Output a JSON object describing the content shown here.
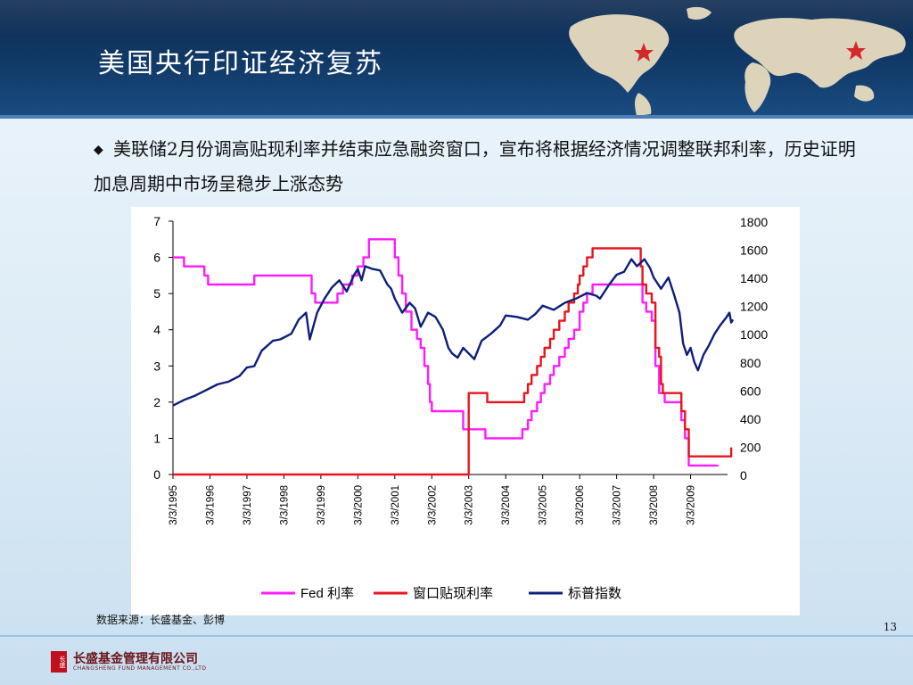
{
  "slide": {
    "title": "美国央行印证经济复苏",
    "bullet": "美联储2月份调高贴现利率并结束应急融资窗口，宣布将根据经济情况调整联邦利率，历史证明加息周期中市场呈稳步上涨态势",
    "source": "数据来源：长盛基金、彭博",
    "page_number": "13"
  },
  "footer": {
    "logo_text": "长盛",
    "company_name": "长盛基金管理有限公司",
    "company_name_en": "CHANGSHENG FUND MANAGEMENT CO.,LTD"
  },
  "colors": {
    "fed_rate": "#ff1aff",
    "discount_rate": "#e8141c",
    "sp500": "#0d1f7a",
    "header_bg": "#123c6b",
    "star": "#d22a2a"
  },
  "chart_data": {
    "type": "line",
    "title": "",
    "left_axis": {
      "ylim": [
        0,
        7
      ],
      "ticks": [
        "0",
        "1",
        "2",
        "3",
        "4",
        "5",
        "6",
        "7"
      ]
    },
    "right_axis": {
      "ylim": [
        0,
        1800
      ],
      "ticks": [
        "0",
        "200",
        "400",
        "600",
        "800",
        "1000",
        "1200",
        "1400",
        "1600",
        "1800"
      ]
    },
    "x_ticks": [
      "3/3/1995",
      "3/3/1996",
      "3/3/1997",
      "3/3/1998",
      "3/3/1999",
      "3/3/2000",
      "3/3/2001",
      "3/3/2002",
      "3/3/2003",
      "3/3/2004",
      "3/3/2005",
      "3/3/2006",
      "3/3/2007",
      "3/3/2008",
      "3/3/2009"
    ],
    "x_range": [
      1995.0,
      2010.0
    ],
    "legend_position": "bottom",
    "series": [
      {
        "name": "Fed 利率",
        "axis": "left",
        "color_key": "fed_rate",
        "step": true,
        "points": [
          [
            1995.0,
            6.0
          ],
          [
            1995.3,
            5.75
          ],
          [
            1995.85,
            5.5
          ],
          [
            1995.95,
            5.25
          ],
          [
            1996.1,
            5.25
          ],
          [
            1997.2,
            5.5
          ],
          [
            1998.5,
            5.5
          ],
          [
            1998.75,
            5.0
          ],
          [
            1998.85,
            4.75
          ],
          [
            1999.45,
            5.0
          ],
          [
            1999.6,
            5.25
          ],
          [
            1999.85,
            5.5
          ],
          [
            2000.0,
            5.75
          ],
          [
            2000.15,
            6.0
          ],
          [
            2000.3,
            6.5
          ],
          [
            2000.85,
            6.5
          ],
          [
            2001.0,
            6.0
          ],
          [
            2001.1,
            5.5
          ],
          [
            2001.2,
            5.0
          ],
          [
            2001.3,
            4.5
          ],
          [
            2001.45,
            4.0
          ],
          [
            2001.6,
            3.75
          ],
          [
            2001.7,
            3.5
          ],
          [
            2001.8,
            3.0
          ],
          [
            2001.9,
            2.5
          ],
          [
            2001.95,
            2.0
          ],
          [
            2002.0,
            1.75
          ],
          [
            2002.85,
            1.25
          ],
          [
            2003.45,
            1.0
          ],
          [
            2004.45,
            1.25
          ],
          [
            2004.6,
            1.5
          ],
          [
            2004.7,
            1.75
          ],
          [
            2004.85,
            2.0
          ],
          [
            2004.95,
            2.25
          ],
          [
            2005.05,
            2.5
          ],
          [
            2005.2,
            2.75
          ],
          [
            2005.3,
            3.0
          ],
          [
            2005.45,
            3.25
          ],
          [
            2005.6,
            3.5
          ],
          [
            2005.7,
            3.75
          ],
          [
            2005.85,
            4.0
          ],
          [
            2006.0,
            4.5
          ],
          [
            2006.1,
            4.75
          ],
          [
            2006.2,
            5.0
          ],
          [
            2006.35,
            5.25
          ],
          [
            2007.65,
            5.25
          ],
          [
            2007.7,
            4.75
          ],
          [
            2007.8,
            4.5
          ],
          [
            2007.95,
            4.25
          ],
          [
            2008.05,
            3.0
          ],
          [
            2008.15,
            2.25
          ],
          [
            2008.3,
            2.0
          ],
          [
            2008.75,
            1.5
          ],
          [
            2008.85,
            1.0
          ],
          [
            2008.95,
            0.25
          ],
          [
            2009.75,
            0.25
          ]
        ]
      },
      {
        "name": "窗口贴现利率",
        "axis": "left",
        "color_key": "discount_rate",
        "step": true,
        "points": [
          [
            1995.0,
            0.0
          ],
          [
            2002.95,
            0.0
          ],
          [
            2003.0,
            2.25
          ],
          [
            2003.5,
            2.0
          ],
          [
            2004.5,
            2.25
          ],
          [
            2004.6,
            2.5
          ],
          [
            2004.7,
            2.75
          ],
          [
            2004.85,
            3.0
          ],
          [
            2004.95,
            3.25
          ],
          [
            2005.05,
            3.5
          ],
          [
            2005.2,
            3.75
          ],
          [
            2005.3,
            4.0
          ],
          [
            2005.45,
            4.25
          ],
          [
            2005.6,
            4.5
          ],
          [
            2005.7,
            4.75
          ],
          [
            2005.85,
            5.0
          ],
          [
            2005.95,
            5.25
          ],
          [
            2006.0,
            5.5
          ],
          [
            2006.1,
            5.75
          ],
          [
            2006.2,
            6.0
          ],
          [
            2006.35,
            6.25
          ],
          [
            2007.6,
            6.25
          ],
          [
            2007.65,
            5.75
          ],
          [
            2007.7,
            5.25
          ],
          [
            2007.8,
            5.0
          ],
          [
            2007.95,
            4.75
          ],
          [
            2008.05,
            3.5
          ],
          [
            2008.15,
            3.25
          ],
          [
            2008.2,
            2.5
          ],
          [
            2008.25,
            2.25
          ],
          [
            2008.75,
            1.75
          ],
          [
            2008.85,
            1.25
          ],
          [
            2008.95,
            0.5
          ],
          [
            2010.05,
            0.5
          ],
          [
            2010.1,
            0.75
          ]
        ]
      },
      {
        "name": "标普指数",
        "axis": "right",
        "color_key": "sp500",
        "step": false,
        "points": [
          [
            1995.0,
            490
          ],
          [
            1995.3,
            530
          ],
          [
            1995.6,
            560
          ],
          [
            1995.9,
            600
          ],
          [
            1996.2,
            640
          ],
          [
            1996.5,
            660
          ],
          [
            1996.8,
            700
          ],
          [
            1997.0,
            760
          ],
          [
            1997.2,
            770
          ],
          [
            1997.4,
            880
          ],
          [
            1997.7,
            950
          ],
          [
            1997.9,
            960
          ],
          [
            1998.2,
            1000
          ],
          [
            1998.4,
            1100
          ],
          [
            1998.6,
            1150
          ],
          [
            1998.7,
            960
          ],
          [
            1998.9,
            1150
          ],
          [
            1999.1,
            1250
          ],
          [
            1999.3,
            1330
          ],
          [
            1999.5,
            1380
          ],
          [
            1999.7,
            1300
          ],
          [
            1999.9,
            1420
          ],
          [
            2000.0,
            1460
          ],
          [
            2000.1,
            1380
          ],
          [
            2000.2,
            1480
          ],
          [
            2000.4,
            1460
          ],
          [
            2000.6,
            1450
          ],
          [
            2000.8,
            1350
          ],
          [
            2000.9,
            1320
          ],
          [
            2001.0,
            1250
          ],
          [
            2001.2,
            1150
          ],
          [
            2001.4,
            1220
          ],
          [
            2001.55,
            1180
          ],
          [
            2001.7,
            1050
          ],
          [
            2001.8,
            1100
          ],
          [
            2001.9,
            1150
          ],
          [
            2002.1,
            1120
          ],
          [
            2002.3,
            1030
          ],
          [
            2002.45,
            900
          ],
          [
            2002.55,
            860
          ],
          [
            2002.7,
            830
          ],
          [
            2002.85,
            900
          ],
          [
            2003.0,
            860
          ],
          [
            2003.15,
            820
          ],
          [
            2003.35,
            950
          ],
          [
            2003.6,
            1000
          ],
          [
            2003.85,
            1060
          ],
          [
            2004.0,
            1130
          ],
          [
            2004.3,
            1120
          ],
          [
            2004.6,
            1100
          ],
          [
            2004.8,
            1140
          ],
          [
            2005.0,
            1200
          ],
          [
            2005.3,
            1170
          ],
          [
            2005.6,
            1220
          ],
          [
            2005.9,
            1250
          ],
          [
            2006.2,
            1290
          ],
          [
            2006.45,
            1270
          ],
          [
            2006.55,
            1250
          ],
          [
            2006.8,
            1350
          ],
          [
            2007.0,
            1420
          ],
          [
            2007.2,
            1440
          ],
          [
            2007.4,
            1530
          ],
          [
            2007.55,
            1480
          ],
          [
            2007.75,
            1530
          ],
          [
            2007.9,
            1470
          ],
          [
            2008.0,
            1400
          ],
          [
            2008.2,
            1320
          ],
          [
            2008.4,
            1400
          ],
          [
            2008.55,
            1280
          ],
          [
            2008.7,
            1150
          ],
          [
            2008.8,
            930
          ],
          [
            2008.9,
            850
          ],
          [
            2009.0,
            900
          ],
          [
            2009.1,
            800
          ],
          [
            2009.2,
            740
          ],
          [
            2009.35,
            850
          ],
          [
            2009.5,
            920
          ],
          [
            2009.65,
            1000
          ],
          [
            2009.8,
            1060
          ],
          [
            2009.95,
            1110
          ],
          [
            2010.05,
            1150
          ],
          [
            2010.1,
            1080
          ],
          [
            2010.15,
            1100
          ]
        ]
      }
    ]
  }
}
